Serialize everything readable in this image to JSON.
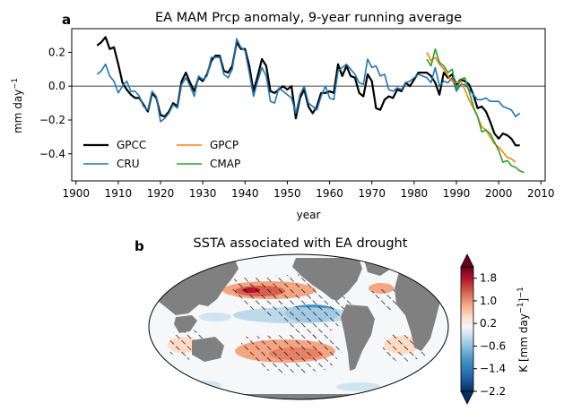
{
  "chart_data": [
    {
      "type": "line",
      "panel_label": "a",
      "title": "EA MAM Prcp anomaly, 9-year running average",
      "xlabel": "year",
      "ylabel": "mm day",
      "ylabel_superscript": "−1",
      "xlim": [
        1899,
        2011
      ],
      "ylim": [
        -0.56,
        0.34
      ],
      "xticks": [
        1900,
        1910,
        1920,
        1930,
        1940,
        1950,
        1960,
        1970,
        1980,
        1990,
        2000,
        2010
      ],
      "yticks": [
        0.2,
        0.0,
        -0.2,
        -0.4
      ],
      "ytick_labels": [
        "0.2",
        "0.0",
        "−0.2",
        "−0.4"
      ],
      "zero_line": true,
      "legend_placement": "lower-left",
      "series": [
        {
          "name": "GPCC",
          "color": "#000000",
          "x": [
            1905,
            1906,
            1907,
            1908,
            1909,
            1910,
            1911,
            1912,
            1913,
            1914,
            1915,
            1916,
            1917,
            1918,
            1919,
            1920,
            1921,
            1922,
            1923,
            1924,
            1925,
            1926,
            1927,
            1928,
            1929,
            1930,
            1931,
            1932,
            1933,
            1934,
            1935,
            1936,
            1937,
            1938,
            1939,
            1940,
            1941,
            1942,
            1943,
            1944,
            1945,
            1946,
            1947,
            1948,
            1949,
            1950,
            1951,
            1952,
            1953,
            1954,
            1955,
            1956,
            1957,
            1958,
            1959,
            1960,
            1961,
            1962,
            1963,
            1964,
            1965,
            1966,
            1967,
            1968,
            1969,
            1970,
            1971,
            1972,
            1973,
            1974,
            1975,
            1976,
            1977,
            1978,
            1979,
            1980,
            1981,
            1982,
            1983,
            1984,
            1985,
            1986,
            1987,
            1988,
            1989,
            1990,
            1991,
            1992,
            1993,
            1994,
            1995,
            1996,
            1997,
            1998,
            1999,
            2000,
            2001,
            2002,
            2003,
            2004,
            2005
          ],
          "values": [
            0.24,
            0.26,
            0.29,
            0.22,
            0.23,
            0.13,
            0.02,
            -0.02,
            -0.05,
            -0.07,
            -0.07,
            -0.11,
            -0.15,
            -0.04,
            -0.07,
            -0.17,
            -0.18,
            -0.15,
            -0.1,
            -0.12,
            0.03,
            0.08,
            0.02,
            -0.03,
            0.05,
            0.03,
            0.07,
            0.15,
            0.18,
            0.18,
            0.09,
            0.08,
            0.12,
            0.26,
            0.22,
            0.22,
            0.12,
            -0.03,
            0.06,
            0.16,
            0.12,
            -0.03,
            -0.04,
            -0.02,
            0.0,
            -0.02,
            0.0,
            -0.19,
            -0.07,
            -0.02,
            -0.12,
            -0.16,
            -0.12,
            -0.04,
            -0.04,
            -0.03,
            -0.04,
            0.13,
            0.06,
            0.12,
            0.06,
            0.05,
            -0.04,
            -0.06,
            0.07,
            0.03,
            -0.13,
            -0.14,
            -0.08,
            -0.06,
            -0.07,
            -0.02,
            -0.03,
            0.02,
            0.0,
            0.04,
            0.08,
            0.08,
            0.08,
            0.06,
            0.02,
            -0.05,
            0.08,
            0.05,
            0.07,
            0.01,
            0.04,
            0.03,
            0.01,
            -0.05,
            -0.13,
            -0.12,
            -0.15,
            -0.21,
            -0.28,
            -0.31,
            -0.28,
            -0.29,
            -0.31,
            -0.35,
            -0.35
          ]
        },
        {
          "name": "CRU",
          "color": "#1f77b4",
          "x": [
            1905,
            1906,
            1907,
            1908,
            1909,
            1910,
            1911,
            1912,
            1913,
            1914,
            1915,
            1916,
            1917,
            1918,
            1919,
            1920,
            1921,
            1922,
            1923,
            1924,
            1925,
            1926,
            1927,
            1928,
            1929,
            1930,
            1931,
            1932,
            1933,
            1934,
            1935,
            1936,
            1937,
            1938,
            1939,
            1940,
            1941,
            1942,
            1943,
            1944,
            1945,
            1946,
            1947,
            1948,
            1949,
            1950,
            1951,
            1952,
            1953,
            1954,
            1955,
            1956,
            1957,
            1958,
            1959,
            1960,
            1961,
            1962,
            1963,
            1964,
            1965,
            1966,
            1967,
            1968,
            1969,
            1970,
            1971,
            1972,
            1973,
            1974,
            1975,
            1976,
            1977,
            1978,
            1979,
            1980,
            1981,
            1982,
            1983,
            1984,
            1985,
            1986,
            1987,
            1988,
            1989,
            1990,
            1991,
            1992,
            1993,
            1994,
            1995,
            1996,
            1997,
            1998,
            1999,
            2000,
            2001,
            2002,
            2003,
            2004,
            2005
          ],
          "values": [
            0.07,
            0.09,
            0.13,
            0.06,
            0.03,
            -0.04,
            0.0,
            0.03,
            -0.03,
            -0.03,
            -0.06,
            -0.12,
            -0.14,
            -0.03,
            -0.06,
            -0.21,
            -0.19,
            -0.16,
            -0.11,
            -0.13,
            0.01,
            0.05,
            0.0,
            -0.06,
            0.06,
            0.04,
            0.06,
            0.17,
            0.17,
            0.17,
            0.07,
            0.05,
            0.1,
            0.28,
            0.23,
            0.21,
            0.08,
            -0.06,
            0.03,
            0.11,
            0.06,
            -0.09,
            -0.1,
            -0.01,
            -0.03,
            -0.05,
            -0.07,
            -0.16,
            -0.05,
            0.0,
            -0.1,
            -0.12,
            -0.14,
            -0.06,
            0.0,
            -0.07,
            -0.08,
            0.09,
            0.11,
            0.13,
            0.1,
            0.07,
            0.02,
            0.01,
            0.16,
            0.11,
            0.12,
            0.06,
            0.07,
            -0.02,
            -0.03,
            -0.01,
            -0.02,
            0.02,
            0.03,
            0.05,
            0.07,
            0.06,
            0.05,
            0.02,
            0.11,
            0.0,
            0.03,
            0.02,
            0.05,
            -0.03,
            0.01,
            0.01,
            -0.02,
            -0.05,
            -0.08,
            -0.08,
            -0.07,
            -0.09,
            -0.09,
            -0.09,
            -0.12,
            -0.13,
            -0.14,
            -0.18,
            -0.16
          ]
        },
        {
          "name": "GPCP",
          "color": "#ff7f0e",
          "x": [
            1983,
            1984,
            1985,
            1986,
            1987,
            1988,
            1989,
            1990,
            1991,
            1992,
            1993,
            1994,
            1995,
            1996,
            1997,
            1998,
            1999,
            2000,
            2001,
            2002,
            2003,
            2004
          ],
          "values": [
            0.2,
            0.15,
            0.17,
            0.13,
            0.1,
            0.06,
            0.03,
            0.02,
            0.03,
            -0.02,
            -0.08,
            -0.13,
            -0.18,
            -0.24,
            -0.26,
            -0.3,
            -0.34,
            -0.36,
            -0.39,
            -0.42,
            -0.43,
            -0.45
          ]
        },
        {
          "name": "CMAP",
          "color": "#2ca02c",
          "x": [
            1983,
            1984,
            1985,
            1986,
            1987,
            1988,
            1989,
            1990,
            1991,
            1992,
            1993,
            1994,
            1995,
            1996,
            1997,
            1998,
            1999,
            2000,
            2001,
            2002,
            2003,
            2004,
            2005,
            2006
          ],
          "values": [
            0.16,
            0.12,
            0.22,
            0.14,
            0.12,
            0.08,
            0.1,
            -0.02,
            0.04,
            0.05,
            -0.03,
            -0.12,
            -0.18,
            -0.27,
            -0.26,
            -0.28,
            -0.33,
            -0.38,
            -0.45,
            -0.44,
            -0.47,
            -0.48,
            -0.5,
            -0.51
          ]
        }
      ]
    },
    {
      "type": "heatmap",
      "panel_label": "b",
      "title": "SSTA associated with EA drought",
      "projection": "Mollweide",
      "land_color": "#808080",
      "hatching": "diagonal, significant regions",
      "colorbar": {
        "label": "K [mm day",
        "label_superscript": "−1",
        "label_suffix": "]",
        "label_suffix_superscript": "−1",
        "cmap": "RdBu_r",
        "vmin": -2.2,
        "vmax": 2.2,
        "ticks": [
          1.8,
          1.0,
          0.2,
          -0.6,
          -1.4,
          -2.2
        ],
        "tick_labels": [
          "1.8",
          "1.0",
          "0.2",
          "−0.6",
          "−1.4",
          "−2.2"
        ],
        "extend": "both"
      }
    }
  ]
}
